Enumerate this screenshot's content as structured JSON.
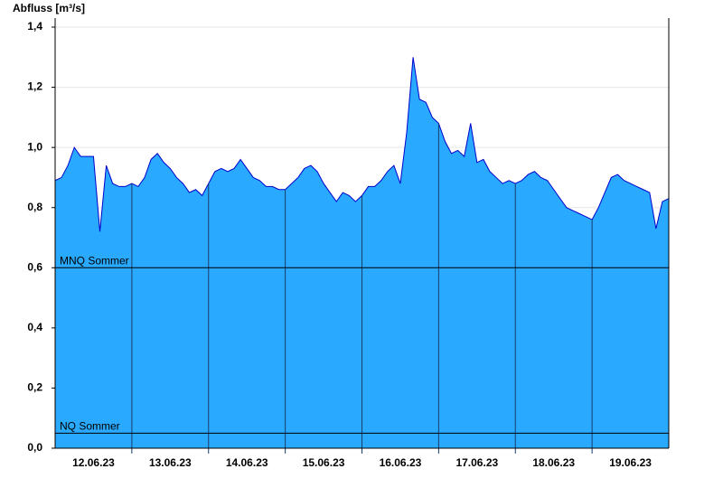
{
  "chart_data": {
    "type": "area",
    "ylabel": "Abfluss [m³/s]",
    "categories": [
      null,
      null,
      null,
      null,
      null,
      null,
      "12.06.23",
      null,
      null,
      null,
      null,
      null,
      null,
      null,
      null,
      null,
      null,
      null,
      "13.06.23",
      null,
      null,
      null,
      null,
      null,
      null,
      null,
      null,
      null,
      null,
      null,
      "14.06.23",
      null,
      null,
      null,
      null,
      null,
      null,
      null,
      null,
      null,
      null,
      null,
      "15.06.23",
      null,
      null,
      null,
      null,
      null,
      null,
      null,
      null,
      null,
      null,
      null,
      "16.06.23",
      null,
      null,
      null,
      null,
      null,
      null,
      null,
      null,
      null,
      null,
      null,
      "17.06.23",
      null,
      null,
      null,
      null,
      null,
      null,
      null,
      null,
      null,
      null,
      null,
      "18.06.23",
      null,
      null,
      null,
      null,
      null,
      null,
      null,
      null,
      null,
      null,
      null,
      "19.06.23",
      null,
      null,
      null,
      null,
      null,
      null
    ],
    "values": [
      0.89,
      0.9,
      0.94,
      1.0,
      0.97,
      0.97,
      0.97,
      0.72,
      0.94,
      0.88,
      0.87,
      0.87,
      0.88,
      0.87,
      0.9,
      0.96,
      0.98,
      0.95,
      0.93,
      0.9,
      0.88,
      0.85,
      0.86,
      0.84,
      0.88,
      0.92,
      0.93,
      0.92,
      0.93,
      0.96,
      0.93,
      0.9,
      0.89,
      0.87,
      0.87,
      0.86,
      0.86,
      0.88,
      0.9,
      0.93,
      0.94,
      0.92,
      0.88,
      0.85,
      0.82,
      0.85,
      0.84,
      0.82,
      0.84,
      0.87,
      0.87,
      0.89,
      0.92,
      0.94,
      0.88,
      1.05,
      1.3,
      1.16,
      1.15,
      1.1,
      1.08,
      1.02,
      0.98,
      0.99,
      0.97,
      1.08,
      0.95,
      0.96,
      0.92,
      0.9,
      0.88,
      0.89,
      0.88,
      0.89,
      0.91,
      0.92,
      0.9,
      0.89,
      0.86,
      0.83,
      0.8,
      0.79,
      0.78,
      0.77,
      0.76,
      0.8,
      0.85,
      0.9,
      0.91,
      0.89,
      0.88,
      0.87,
      0.86,
      0.85,
      0.73,
      0.82,
      0.83
    ],
    "color": "#29a9ff",
    "line_color": "#0000cc",
    "ylim": [
      0,
      1.4
    ],
    "yticks": [
      {
        "value": 0,
        "label": "0,0"
      },
      {
        "value": 0.2,
        "label": "0,2"
      },
      {
        "value": 0.4,
        "label": "0,4"
      },
      {
        "value": 0.6,
        "label": "0,6"
      },
      {
        "value": 0.8,
        "label": "0,8"
      },
      {
        "value": 1.0,
        "label": "1,0"
      },
      {
        "value": 1.2,
        "label": "1,2"
      },
      {
        "value": 1.4,
        "label": "1,4"
      }
    ],
    "grid": true,
    "reference_lines": [
      {
        "label": "MNQ Sommer",
        "value": 0.6
      },
      {
        "label": "NQ Sommer",
        "value": 0.05
      }
    ]
  }
}
